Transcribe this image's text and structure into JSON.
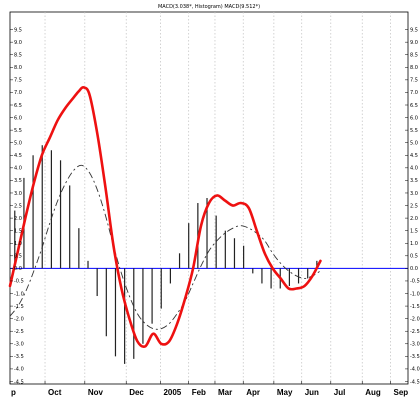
{
  "chart_data": {
    "type": "line",
    "title": "MACD(3.038*, Histogram) MACD(9.512*)",
    "xlabel": "",
    "ylabel": "",
    "ylim": [
      -4.6,
      10.2
    ],
    "yticks": [
      -4.5,
      -4.0,
      -3.5,
      -3.0,
      -2.5,
      -2.0,
      -1.5,
      -1.0,
      -0.5,
      0.0,
      0.5,
      1.0,
      1.5,
      2.0,
      2.5,
      3.0,
      3.5,
      4.0,
      4.5,
      5.0,
      5.5,
      6.0,
      6.5,
      7.0,
      7.5,
      8.0,
      8.5,
      9.0,
      9.5
    ],
    "ytick_labels": [
      "-4.5",
      "-4.0",
      "-3.5",
      "-3.0",
      "-2.5",
      "-2.0",
      "-1.5",
      "-1.0",
      "-0.5",
      "0.0",
      "0.5",
      "1.0",
      "1.5",
      "2.0",
      "2.5",
      "3.0",
      "3.5",
      "4.0",
      "4.5",
      "5.0",
      "5.5",
      "6.0",
      "6.5",
      "7.0",
      "7.5",
      "8.0",
      "8.5",
      "9.0",
      "9.5"
    ],
    "x_range": [
      0,
      100
    ],
    "x_ticks": [
      {
        "label": "p",
        "x": 0
      },
      {
        "label": "Oct",
        "x": 8.8
      },
      {
        "label": "Nov",
        "x": 18.8
      },
      {
        "label": "Dec",
        "x": 29.2
      },
      {
        "label": "2005",
        "x": 37.8
      },
      {
        "label": "Feb",
        "x": 44.9
      },
      {
        "label": "Mar",
        "x": 51.5
      },
      {
        "label": "Apr",
        "x": 58.6
      },
      {
        "label": "May",
        "x": 66.3
      },
      {
        "label": "Jun",
        "x": 73.3
      },
      {
        "label": "Jul",
        "x": 80.6
      },
      {
        "label": "Aug",
        "x": 88.5
      },
      {
        "label": "Sep",
        "x": 95.6
      }
    ],
    "zero_line": 0,
    "grid": true,
    "legend": "none",
    "colors": {
      "macd": "#ee1111",
      "signal": "#333333",
      "histogram": "#222222",
      "zero": "#0000ff",
      "grid": "#c0c0c0"
    },
    "series": [
      {
        "name": "MACD",
        "style": "line",
        "x": [
          0,
          2,
          4,
          6,
          8,
          10,
          12,
          14,
          16,
          17.3,
          18.5,
          20,
          22,
          24,
          26,
          28,
          30,
          32,
          34,
          36,
          38,
          40,
          42,
          44,
          46,
          48,
          50,
          52,
          54,
          56,
          58,
          60,
          62,
          64,
          66,
          68,
          70,
          72,
          74,
          76,
          78
        ],
        "values": [
          -0.7,
          0.7,
          2.1,
          3.4,
          4.5,
          5.2,
          5.9,
          6.4,
          6.8,
          7.05,
          7.2,
          6.9,
          5.3,
          3.2,
          0.9,
          -0.8,
          -2.0,
          -2.9,
          -3.1,
          -2.6,
          -3.0,
          -2.9,
          -2.2,
          -1.2,
          0.0,
          1.7,
          2.6,
          2.9,
          2.7,
          2.5,
          2.6,
          2.4,
          1.5,
          0.6,
          0.0,
          -0.4,
          -0.8,
          -0.8,
          -0.7,
          -0.3,
          0.3
        ]
      },
      {
        "name": "Signal",
        "style": "dashed",
        "x": [
          0,
          2,
          4,
          6,
          8,
          10,
          12,
          14,
          16,
          18,
          20,
          22,
          24,
          26,
          28,
          30,
          32,
          34,
          36,
          38,
          40,
          42,
          44,
          46,
          48,
          50,
          52,
          54,
          56,
          58,
          60,
          62,
          64,
          66,
          68,
          70,
          72,
          74,
          76,
          78
        ],
        "values": [
          -1.9,
          -1.5,
          -0.9,
          -0.1,
          0.8,
          1.8,
          2.7,
          3.4,
          3.9,
          4.1,
          3.8,
          3.1,
          2.1,
          0.9,
          -0.2,
          -1.1,
          -1.8,
          -2.2,
          -2.4,
          -2.4,
          -2.2,
          -1.8,
          -1.3,
          -0.6,
          0.1,
          0.7,
          1.1,
          1.4,
          1.6,
          1.7,
          1.6,
          1.4,
          1.1,
          0.6,
          0.2,
          -0.1,
          -0.3,
          -0.4,
          -0.3,
          -0.1
        ]
      },
      {
        "name": "Histogram",
        "style": "bar",
        "x": [
          1.2,
          3.5,
          5.8,
          8.1,
          10.4,
          12.7,
          15.0,
          17.3,
          19.6,
          21.9,
          24.2,
          26.5,
          28.8,
          31.1,
          33.4,
          35.7,
          38.0,
          40.3,
          42.6,
          44.9,
          47.2,
          49.5,
          51.8,
          54.1,
          56.4,
          58.7,
          61.0,
          63.3,
          65.6,
          67.9,
          70.2,
          72.5,
          74.8,
          77.1
        ],
        "values": [
          2.3,
          3.6,
          4.5,
          4.9,
          4.7,
          4.3,
          3.3,
          1.6,
          0.3,
          -1.1,
          -2.7,
          -3.5,
          -3.8,
          -3.6,
          -3.0,
          -2.2,
          -1.6,
          -0.6,
          0.6,
          1.8,
          2.6,
          2.8,
          2.1,
          1.5,
          1.2,
          0.9,
          -0.2,
          -0.6,
          -0.8,
          -0.8,
          -0.7,
          -0.6,
          -0.4,
          0.3
        ]
      }
    ]
  }
}
